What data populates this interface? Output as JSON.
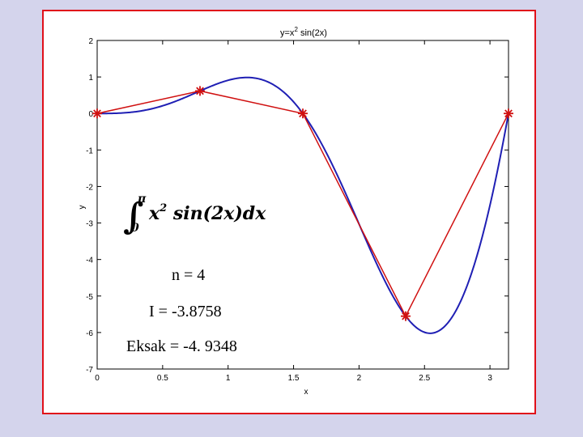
{
  "chart_data": {
    "type": "line",
    "title": "y=x² sin(2x)",
    "title_base": "y=x",
    "title_sup": "2",
    "title_rest": " sin(2x)",
    "xlabel": "x",
    "ylabel": "y",
    "xlim": [
      0,
      3.1416
    ],
    "ylim": [
      -7,
      2
    ],
    "xticks": [
      0,
      0.5,
      1,
      1.5,
      2,
      2.5,
      3
    ],
    "xtick_labels": [
      "0",
      "0.5",
      "1",
      "1.5",
      "2",
      "2.5",
      "3"
    ],
    "yticks": [
      2,
      1,
      0,
      -1,
      -2,
      -3,
      -4,
      -5,
      -6,
      -7
    ],
    "ytick_labels": [
      "2",
      "1",
      "0",
      "-1",
      "-2",
      "-3",
      "-4",
      "-5",
      "-6",
      "-7"
    ],
    "grid": false,
    "series": [
      {
        "kind": "function",
        "expression": "x^2 sin(2x)",
        "domain": [
          0,
          3.1416
        ],
        "color": "#1f1fb4"
      },
      {
        "kind": "polyline-with-markers",
        "marker": "asterisk",
        "color": "#d01010",
        "x": [
          0,
          0.7854,
          1.5708,
          2.3562,
          3.1416
        ],
        "y": [
          0,
          0.617,
          0,
          -5.552,
          0
        ]
      }
    ],
    "formula": {
      "lower": "0",
      "upper": "π",
      "body_x": "x",
      "body_exp": "2",
      "body_rest": " sin(2x)dx"
    },
    "annotations": [
      "n = 4",
      "I = -3.8758",
      "Eksak = -4. 9348"
    ]
  },
  "colors": {
    "background": "#d4d4ec",
    "frame_border": "#e0101a",
    "curve": "#1f1fb4",
    "trapezoid": "#d01010"
  }
}
